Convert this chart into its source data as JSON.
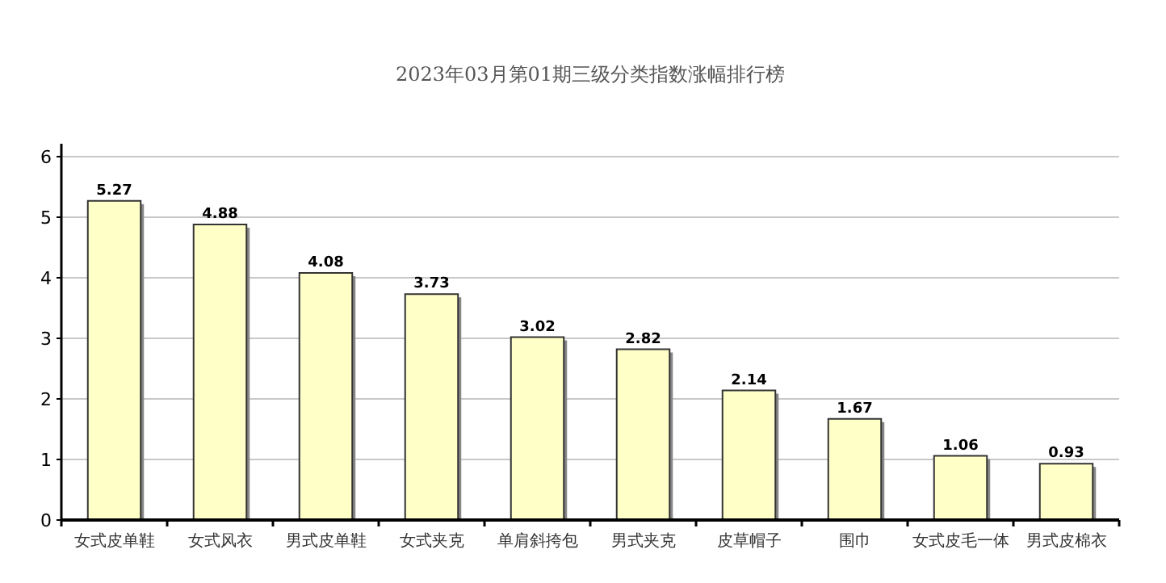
{
  "chart_data": {
    "type": "bar",
    "title": "2023年03月第01期三级分类指数涨幅排行榜",
    "categories": [
      "女式皮单鞋",
      "女式风衣",
      "男式皮单鞋",
      "女式夹克",
      "单肩斜挎包",
      "男式夹克",
      "皮草帽子",
      "围巾",
      "女式皮毛一体",
      "男式皮棉衣"
    ],
    "values": [
      5.27,
      4.88,
      4.08,
      3.73,
      3.02,
      2.82,
      2.14,
      1.67,
      1.06,
      0.93
    ],
    "color": "#ffffc8",
    "ylim": [
      0,
      6
    ],
    "yticks": [
      0,
      1,
      2,
      3,
      4,
      5,
      6
    ],
    "grid": "y",
    "data_labels": true
  }
}
